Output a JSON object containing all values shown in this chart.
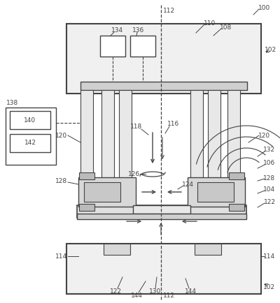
{
  "bg_color": "#ffffff",
  "lc": "#444444",
  "fig_width": 4.0,
  "fig_height": 4.35,
  "dpi": 100
}
